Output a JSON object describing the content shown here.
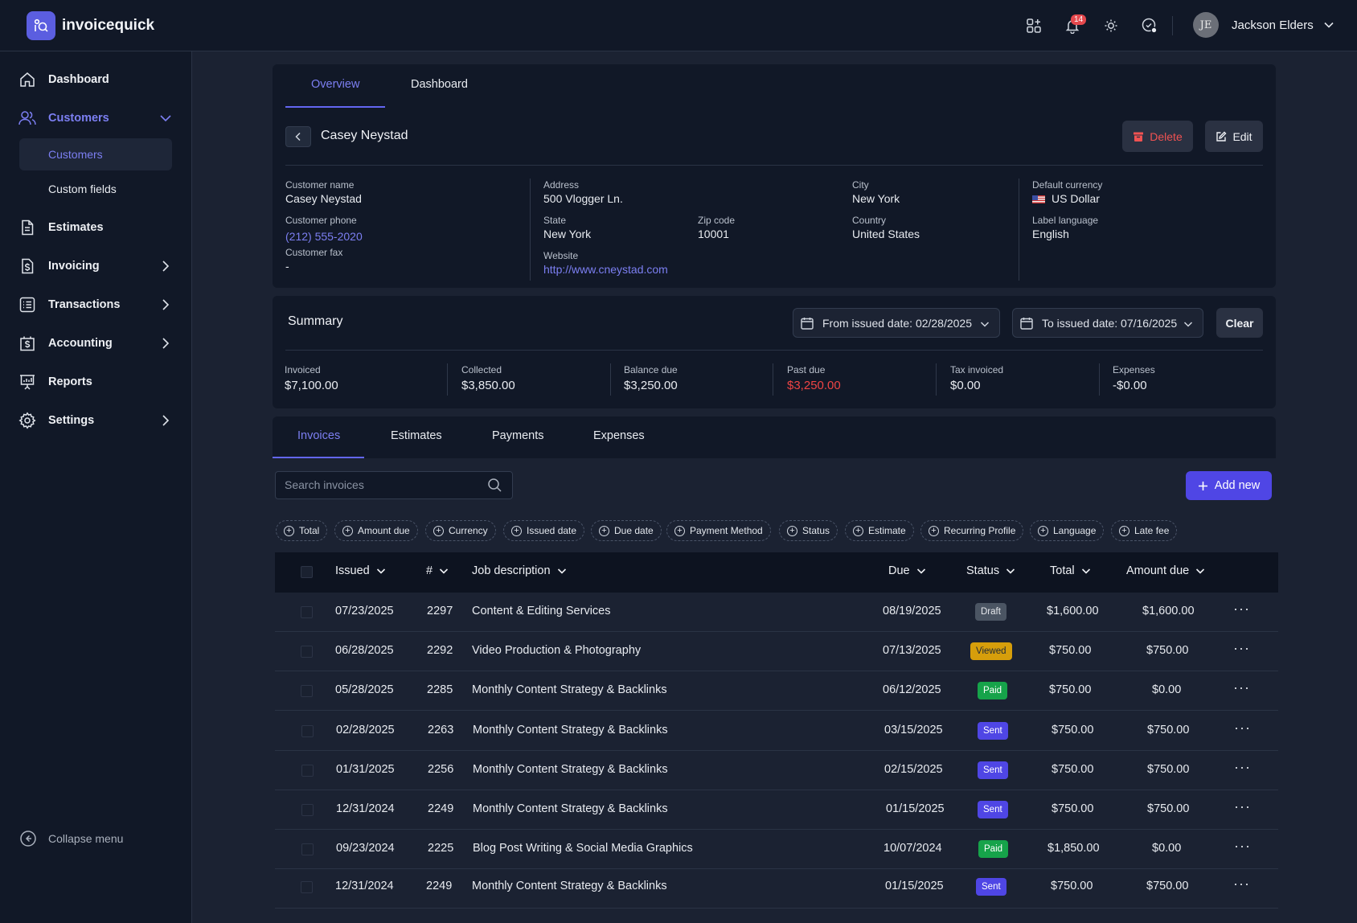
{
  "app": {
    "name": "invoicequick"
  },
  "topbar": {
    "notifications_count": "14",
    "user_initials": "JE",
    "user_name": "Jackson Elders"
  },
  "sidebar": {
    "items": [
      {
        "label": "Dashboard"
      },
      {
        "label": "Customers"
      },
      {
        "label": "Estimates"
      },
      {
        "label": "Invoicing"
      },
      {
        "label": "Transactions"
      },
      {
        "label": "Accounting"
      },
      {
        "label": "Reports"
      },
      {
        "label": "Settings"
      }
    ],
    "sub_items": [
      {
        "label": "Customers"
      },
      {
        "label": "Custom fields"
      }
    ],
    "collapse_label": "Collapse menu"
  },
  "customer": {
    "tabs": [
      {
        "label": "Overview"
      },
      {
        "label": "Dashboard"
      }
    ],
    "title": "Casey Neystad",
    "delete_label": "Delete",
    "edit_label": "Edit",
    "fields": {
      "name_label": "Customer name",
      "name": "Casey Neystad",
      "phone_label": "Customer phone",
      "phone": "(212) 555-2020",
      "fax_label": "Customer fax",
      "fax": "-",
      "address_label": "Address",
      "address": "500 Vlogger Ln.",
      "state_label": "State",
      "state": "New York",
      "zip_label": "Zip code",
      "zip": "10001",
      "website_label": "Website",
      "website": "http://www.cneystad.com",
      "city_label": "City",
      "city": "New York",
      "country_label": "Country",
      "country": "United States",
      "currency_label": "Default currency",
      "currency": "US Dollar",
      "language_label": "Label language",
      "language": "English"
    }
  },
  "summary": {
    "title": "Summary",
    "from_date": "From issued date: 02/28/2025",
    "to_date": "To issued date: 07/16/2025",
    "clear_label": "Clear",
    "stats": [
      {
        "label": "Invoiced",
        "value": "$7,100.00"
      },
      {
        "label": "Collected",
        "value": "$3,850.00"
      },
      {
        "label": "Balance due",
        "value": "$3,250.00"
      },
      {
        "label": "Past due",
        "value": "$3,250.00"
      },
      {
        "label": "Tax invoiced",
        "value": "$0.00"
      },
      {
        "label": "Expenses",
        "value": "-$0.00"
      }
    ]
  },
  "invoices": {
    "tabs": [
      {
        "label": "Invoices"
      },
      {
        "label": "Estimates"
      },
      {
        "label": "Payments"
      },
      {
        "label": "Expenses"
      }
    ],
    "search_placeholder": "Search invoices",
    "add_label": "Add new",
    "filters": [
      {
        "label": "Total"
      },
      {
        "label": "Amount due"
      },
      {
        "label": "Currency"
      },
      {
        "label": "Issued date"
      },
      {
        "label": "Due date"
      },
      {
        "label": "Payment Method"
      },
      {
        "label": "Status"
      },
      {
        "label": "Estimate"
      },
      {
        "label": "Recurring Profile"
      },
      {
        "label": "Language"
      },
      {
        "label": "Late fee"
      }
    ],
    "columns": [
      {
        "label": "Issued"
      },
      {
        "label": "#"
      },
      {
        "label": "Job description"
      },
      {
        "label": "Due"
      },
      {
        "label": "Status"
      },
      {
        "label": "Total"
      },
      {
        "label": "Amount due"
      }
    ],
    "rows": [
      {
        "issued": "07/23/2025",
        "num": "2297",
        "job": "Content & Editing Services",
        "due": "08/19/2025",
        "status": "Draft",
        "total": "$1,600.00",
        "amount_due": "$1,600.00"
      },
      {
        "issued": "06/28/2025",
        "num": "2292",
        "job": "Video Production & Photography",
        "due": "07/13/2025",
        "status": "Viewed",
        "total": "$750.00",
        "amount_due": "$750.00"
      },
      {
        "issued": "05/28/2025",
        "num": "2285",
        "job": "Monthly Content Strategy & Backlinks",
        "due": "06/12/2025",
        "status": "Paid",
        "total": "$750.00",
        "amount_due": "$0.00"
      },
      {
        "issued": "02/28/2025",
        "num": "2263",
        "job": "Monthly Content Strategy & Backlinks",
        "due": "03/15/2025",
        "status": "Sent",
        "total": "$750.00",
        "amount_due": "$750.00"
      },
      {
        "issued": "01/31/2025",
        "num": "2256",
        "job": "Monthly Content Strategy & Backlinks",
        "due": "02/15/2025",
        "status": "Sent",
        "total": "$750.00",
        "amount_due": "$750.00"
      },
      {
        "issued": "12/31/2024",
        "num": "2249",
        "job": "Monthly Content Strategy & Backlinks",
        "due": "01/15/2025",
        "status": "Sent",
        "total": "$750.00",
        "amount_due": "$750.00"
      },
      {
        "issued": "09/23/2024",
        "num": "2225",
        "job": "Blog Post Writing & Social Media Graphics",
        "due": "10/07/2024",
        "status": "Paid",
        "total": "$1,850.00",
        "amount_due": "$0.00"
      },
      {
        "issued": "12/31/2024",
        "num": "2249",
        "job": "Monthly Content Strategy & Backlinks",
        "due": "01/15/2025",
        "status": "Sent",
        "total": "$750.00",
        "amount_due": "$750.00"
      }
    ]
  },
  "colors": {
    "accent": "#6366f1",
    "danger": "#ef4444",
    "draft": "#4b5563",
    "viewed": "#d69e0b",
    "paid": "#16a34a",
    "sent": "#4f46e5"
  }
}
